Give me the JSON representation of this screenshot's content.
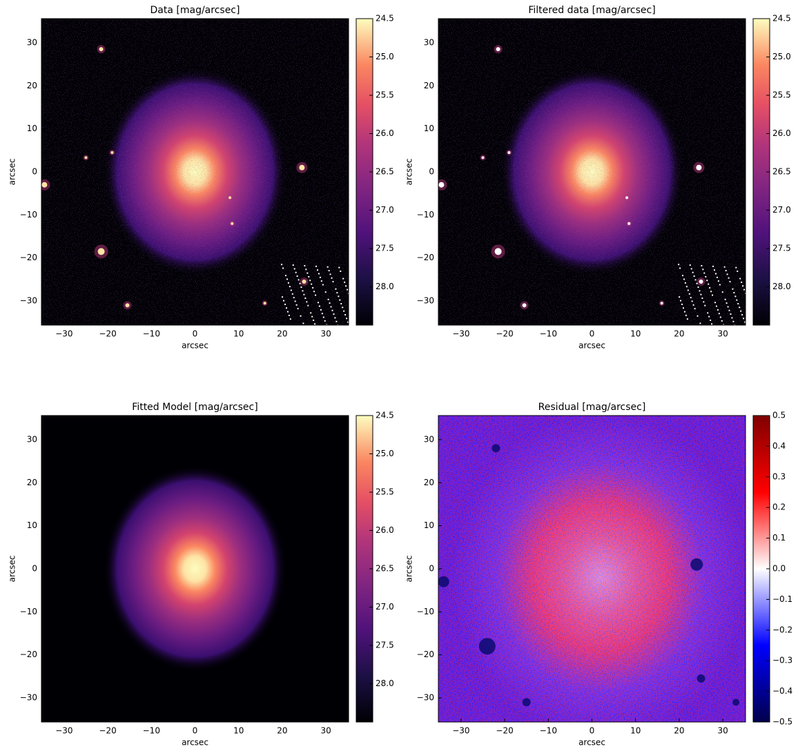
{
  "chart_data": [
    {
      "type": "image",
      "title": "Data [mag/arcsec]",
      "xlabel": "arcsec",
      "ylabel": "arcsec",
      "colormap": "magma",
      "xlim": [
        -35.2,
        35.2
      ],
      "ylim": [
        -35.6,
        35.6
      ],
      "xticks": [
        {
          "value": -30,
          "label": "−30"
        },
        {
          "value": -20,
          "label": "−20"
        },
        {
          "value": -10,
          "label": "−10"
        },
        0,
        10,
        20,
        30
      ],
      "yticks": [
        {
          "value": -30,
          "label": "−30"
        },
        {
          "value": -20,
          "label": "−20"
        },
        {
          "value": -10,
          "label": "−10"
        },
        0,
        10,
        20,
        30
      ],
      "clim": [
        28.5,
        24.5
      ],
      "cticks": [
        24.5,
        {
          "value": 25,
          "label": "25.0"
        },
        25.5,
        {
          "value": 26,
          "label": "26.0"
        },
        26.5,
        {
          "value": 27,
          "label": "27.0"
        },
        27.5,
        {
          "value": 28,
          "label": "28.0"
        }
      ]
    },
    {
      "type": "image",
      "title": "Filtered data [mag/arcsec]",
      "xlabel": "arcsec",
      "ylabel": "arcsec",
      "colormap": "magma",
      "xlim": [
        -35.2,
        35.2
      ],
      "ylim": [
        -35.6,
        35.6
      ],
      "xticks": [
        {
          "value": -30,
          "label": "−30"
        },
        {
          "value": -20,
          "label": "−20"
        },
        {
          "value": -10,
          "label": "−10"
        },
        0,
        10,
        20,
        30
      ],
      "yticks": [
        {
          "value": -30,
          "label": "−30"
        },
        {
          "value": -20,
          "label": "−20"
        },
        {
          "value": -10,
          "label": "−10"
        },
        0,
        10,
        20,
        30
      ],
      "clim": [
        28.5,
        24.5
      ],
      "cticks": [
        24.5,
        {
          "value": 25,
          "label": "25.0"
        },
        25.5,
        {
          "value": 26,
          "label": "26.0"
        },
        26.5,
        {
          "value": 27,
          "label": "27.0"
        },
        27.5,
        {
          "value": 28,
          "label": "28.0"
        }
      ]
    },
    {
      "type": "image",
      "title": "Fitted Model [mag/arcsec]",
      "xlabel": "arcsec",
      "ylabel": "arcsec",
      "colormap": "magma",
      "xlim": [
        -35.2,
        35.2
      ],
      "ylim": [
        -35.6,
        35.6
      ],
      "xticks": [
        {
          "value": -30,
          "label": "−30"
        },
        {
          "value": -20,
          "label": "−20"
        },
        {
          "value": -10,
          "label": "−10"
        },
        0,
        10,
        20,
        30
      ],
      "yticks": [
        {
          "value": -30,
          "label": "−30"
        },
        {
          "value": -20,
          "label": "−20"
        },
        {
          "value": -10,
          "label": "−10"
        },
        0,
        10,
        20,
        30
      ],
      "clim": [
        28.5,
        24.5
      ],
      "cticks": [
        24.5,
        {
          "value": 25,
          "label": "25.0"
        },
        25.5,
        {
          "value": 26,
          "label": "26.0"
        },
        26.5,
        {
          "value": 27,
          "label": "27.0"
        },
        27.5,
        {
          "value": 28,
          "label": "28.0"
        }
      ]
    },
    {
      "type": "image",
      "title": "Residual [mag/arcsec]",
      "xlabel": "arcsec",
      "ylabel": "arcsec",
      "colormap": "seismic",
      "xlim": [
        -35.2,
        35.2
      ],
      "ylim": [
        -35.6,
        35.6
      ],
      "xticks": [
        {
          "value": -30,
          "label": "−30"
        },
        {
          "value": -20,
          "label": "−20"
        },
        {
          "value": -10,
          "label": "−10"
        },
        0,
        10,
        20,
        30
      ],
      "yticks": [
        {
          "value": -30,
          "label": "−30"
        },
        {
          "value": -20,
          "label": "−20"
        },
        {
          "value": -10,
          "label": "−10"
        },
        0,
        10,
        20,
        30
      ],
      "clim": [
        -0.5,
        0.5
      ],
      "cticks": [
        0.5,
        0.4,
        0.3,
        0.2,
        0.1,
        {
          "value": 0,
          "label": "0.0"
        },
        {
          "value": -0.1,
          "label": "−0.1"
        },
        {
          "value": -0.2,
          "label": "−0.2"
        },
        {
          "value": -0.3,
          "label": "−0.3"
        },
        {
          "value": -0.4,
          "label": "−0.4"
        },
        {
          "value": -0.5,
          "label": "−0.5"
        }
      ]
    }
  ]
}
